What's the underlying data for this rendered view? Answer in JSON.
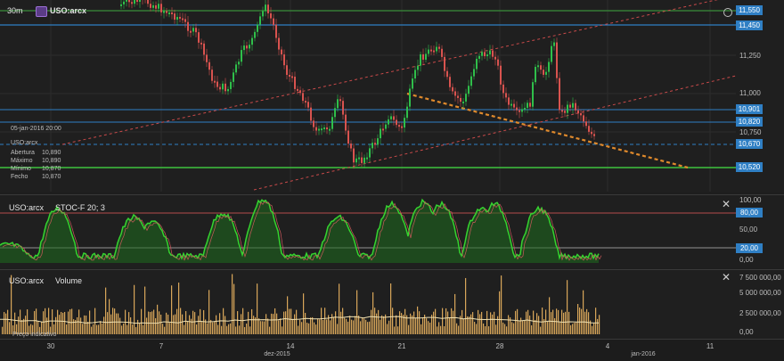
{
  "header": {
    "timeframe": "30m",
    "symbol": "USO:arcx"
  },
  "main": {
    "price_labels": [
      "11,550",
      "11,450",
      "10,901",
      "10,820",
      "10,670",
      "10,520"
    ],
    "axis_ticks": [
      "11,250",
      "11,000",
      "10,750"
    ],
    "info": {
      "date": "05-jan-2016 20:00",
      "symbol": "USO:arcx",
      "rows": [
        {
          "label": "Abertura",
          "value": "10,890"
        },
        {
          "label": "Máximo",
          "value": "10,890"
        },
        {
          "label": "Mínimo",
          "value": "10,870"
        },
        {
          "label": "Fecho",
          "value": "10,870"
        }
      ]
    }
  },
  "stochastic": {
    "title_symbol": "USO:arcx",
    "title": "STOC-F 20; 3",
    "axis_ticks": [
      "100,00",
      "50,00",
      "0,00"
    ],
    "labels": [
      "80,00",
      "20,00"
    ]
  },
  "volume": {
    "title_symbol": "USO:arcx",
    "title": "Volume",
    "axis_ticks": [
      "7 500 000,00",
      "5 000 000,00",
      "2 500 000,00",
      "0,00"
    ],
    "footer_label": "Preço indicativo"
  },
  "xaxis": {
    "ticks": [
      "30",
      "7",
      "14",
      "21",
      "28",
      "4",
      "11"
    ],
    "months": [
      "dez-2015",
      "jan-2016"
    ]
  },
  "colors": {
    "up": "#2fbf4a",
    "down": "#d9534f",
    "accent": "#2f7fc4",
    "stoch": "#35d42f",
    "volume": "#d8a65a",
    "channel": "#c94a4a",
    "trend": "#e08a2c"
  }
}
